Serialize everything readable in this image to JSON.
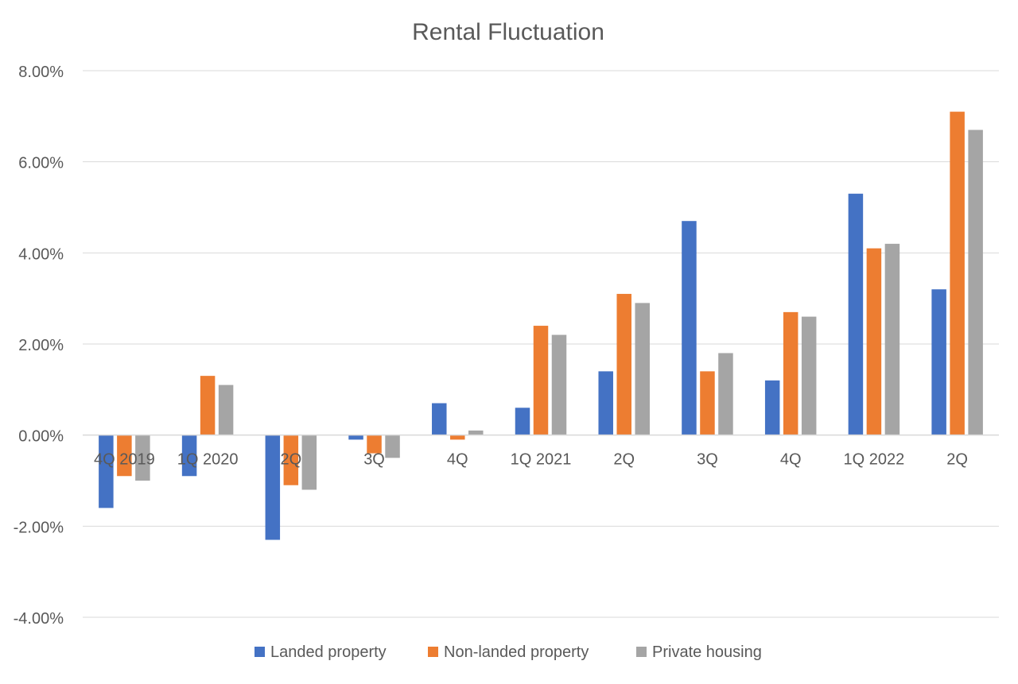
{
  "chart_data": {
    "type": "bar",
    "title": "Rental Fluctuation",
    "xlabel": "",
    "ylabel": "",
    "categories": [
      "4Q 2019",
      "1Q 2020",
      "2Q",
      "3Q",
      "4Q",
      "1Q 2021",
      "2Q",
      "3Q",
      "4Q",
      "1Q 2022",
      "2Q"
    ],
    "series": [
      {
        "name": "Landed property",
        "color": "#4472C4",
        "values": [
          -1.6,
          -0.9,
          -2.3,
          -0.1,
          0.7,
          0.6,
          1.4,
          4.7,
          1.2,
          5.3,
          3.2
        ]
      },
      {
        "name": "Non-landed property",
        "color": "#ED7D31",
        "values": [
          -0.9,
          1.3,
          -1.1,
          -0.4,
          -0.1,
          2.4,
          3.1,
          1.4,
          2.7,
          4.1,
          7.1
        ]
      },
      {
        "name": "Private housing",
        "color": "#A5A5A5",
        "values": [
          -1.0,
          1.1,
          -1.2,
          -0.5,
          0.1,
          2.2,
          2.9,
          1.8,
          2.6,
          4.2,
          6.7
        ]
      }
    ],
    "ylim": [
      -4,
      8
    ],
    "yticks": [
      -4,
      -2,
      0,
      2,
      4,
      6,
      8
    ],
    "ytick_labels": [
      "-4.00%",
      "-2.00%",
      "0.00%",
      "2.00%",
      "4.00%",
      "6.00%",
      "8.00%"
    ],
    "grid": true,
    "legend": "bottom-center"
  }
}
